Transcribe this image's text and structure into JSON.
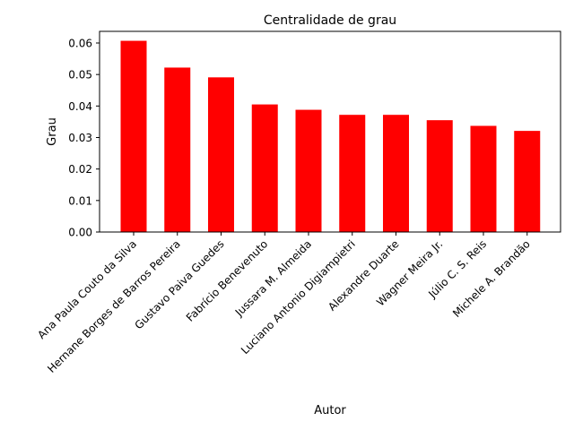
{
  "chart_data": {
    "type": "bar",
    "title": "Centralidade de grau",
    "xlabel": "Autor",
    "ylabel": "Grau",
    "categories": [
      "Ana Paula Couto da Silva",
      "Hernane Borges de Barros Pereira",
      "Gustavo Paiva Guedes",
      "Fabrício Benevenuto",
      "Jussara M. Almeida",
      "Luciano Antonio Digiampietri",
      "Alexandre Duarte",
      "Wagner Meira Jr.",
      "Júlio C. S. Reis",
      "Michele A. Brandão"
    ],
    "values": [
      0.0607,
      0.0522,
      0.0491,
      0.0405,
      0.0388,
      0.0372,
      0.0372,
      0.0355,
      0.0337,
      0.0321
    ],
    "ylim": [
      0,
      0.0637
    ],
    "yticks": [
      "0.00",
      "0.01",
      "0.02",
      "0.03",
      "0.04",
      "0.05",
      "0.06"
    ],
    "bar_color": "#ff0000",
    "grid": false,
    "legend": "none"
  }
}
